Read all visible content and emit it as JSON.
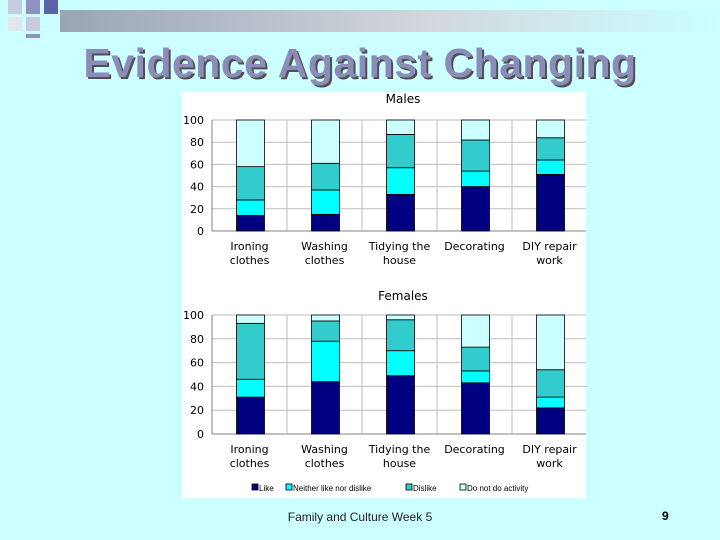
{
  "slide": {
    "title": "Evidence Against Changing",
    "footer": "Family and Culture Week 5",
    "page_number": "9"
  },
  "colors": {
    "background": "#ccffff",
    "like": "#000080",
    "neither": "#00ffff",
    "dislike": "#33cccc",
    "do_not_do": "#ccffff"
  },
  "legend": [
    {
      "label": "Like",
      "color": "#000080"
    },
    {
      "label": "Neither like nor dislike",
      "color": "#00ffff"
    },
    {
      "label": "Dislike",
      "color": "#33cccc"
    },
    {
      "label": "Do not do activity",
      "color": "#ccffff"
    }
  ],
  "chart_data": [
    {
      "type": "bar",
      "stacked": true,
      "title": "Males",
      "categories": [
        "Ironing clothes",
        "Washing clothes",
        "Tidying the house",
        "Decorating",
        "DIY repair work"
      ],
      "ylim": [
        0,
        100
      ],
      "yticks": [
        0,
        20,
        40,
        60,
        80,
        100
      ],
      "series": [
        {
          "name": "Like",
          "values": [
            14,
            15,
            33,
            40,
            51
          ]
        },
        {
          "name": "Neither like nor dislike",
          "values": [
            14,
            22,
            24,
            14,
            13
          ]
        },
        {
          "name": "Dislike",
          "values": [
            30,
            24,
            30,
            28,
            20
          ]
        },
        {
          "name": "Do not do activity",
          "values": [
            42,
            39,
            13,
            18,
            16
          ]
        }
      ]
    },
    {
      "type": "bar",
      "stacked": true,
      "title": "Females",
      "categories": [
        "Ironing clothes",
        "Washing clothes",
        "Tidying the house",
        "Decorating",
        "DIY repair work"
      ],
      "ylim": [
        0,
        100
      ],
      "yticks": [
        0,
        20,
        40,
        60,
        80,
        100
      ],
      "series": [
        {
          "name": "Like",
          "values": [
            31,
            44,
            49,
            43,
            22
          ]
        },
        {
          "name": "Neither like nor dislike",
          "values": [
            15,
            34,
            21,
            10,
            9
          ]
        },
        {
          "name": "Dislike",
          "values": [
            47,
            17,
            26,
            20,
            23
          ]
        },
        {
          "name": "Do not do activity",
          "values": [
            7,
            5,
            4,
            27,
            46
          ]
        }
      ]
    }
  ]
}
